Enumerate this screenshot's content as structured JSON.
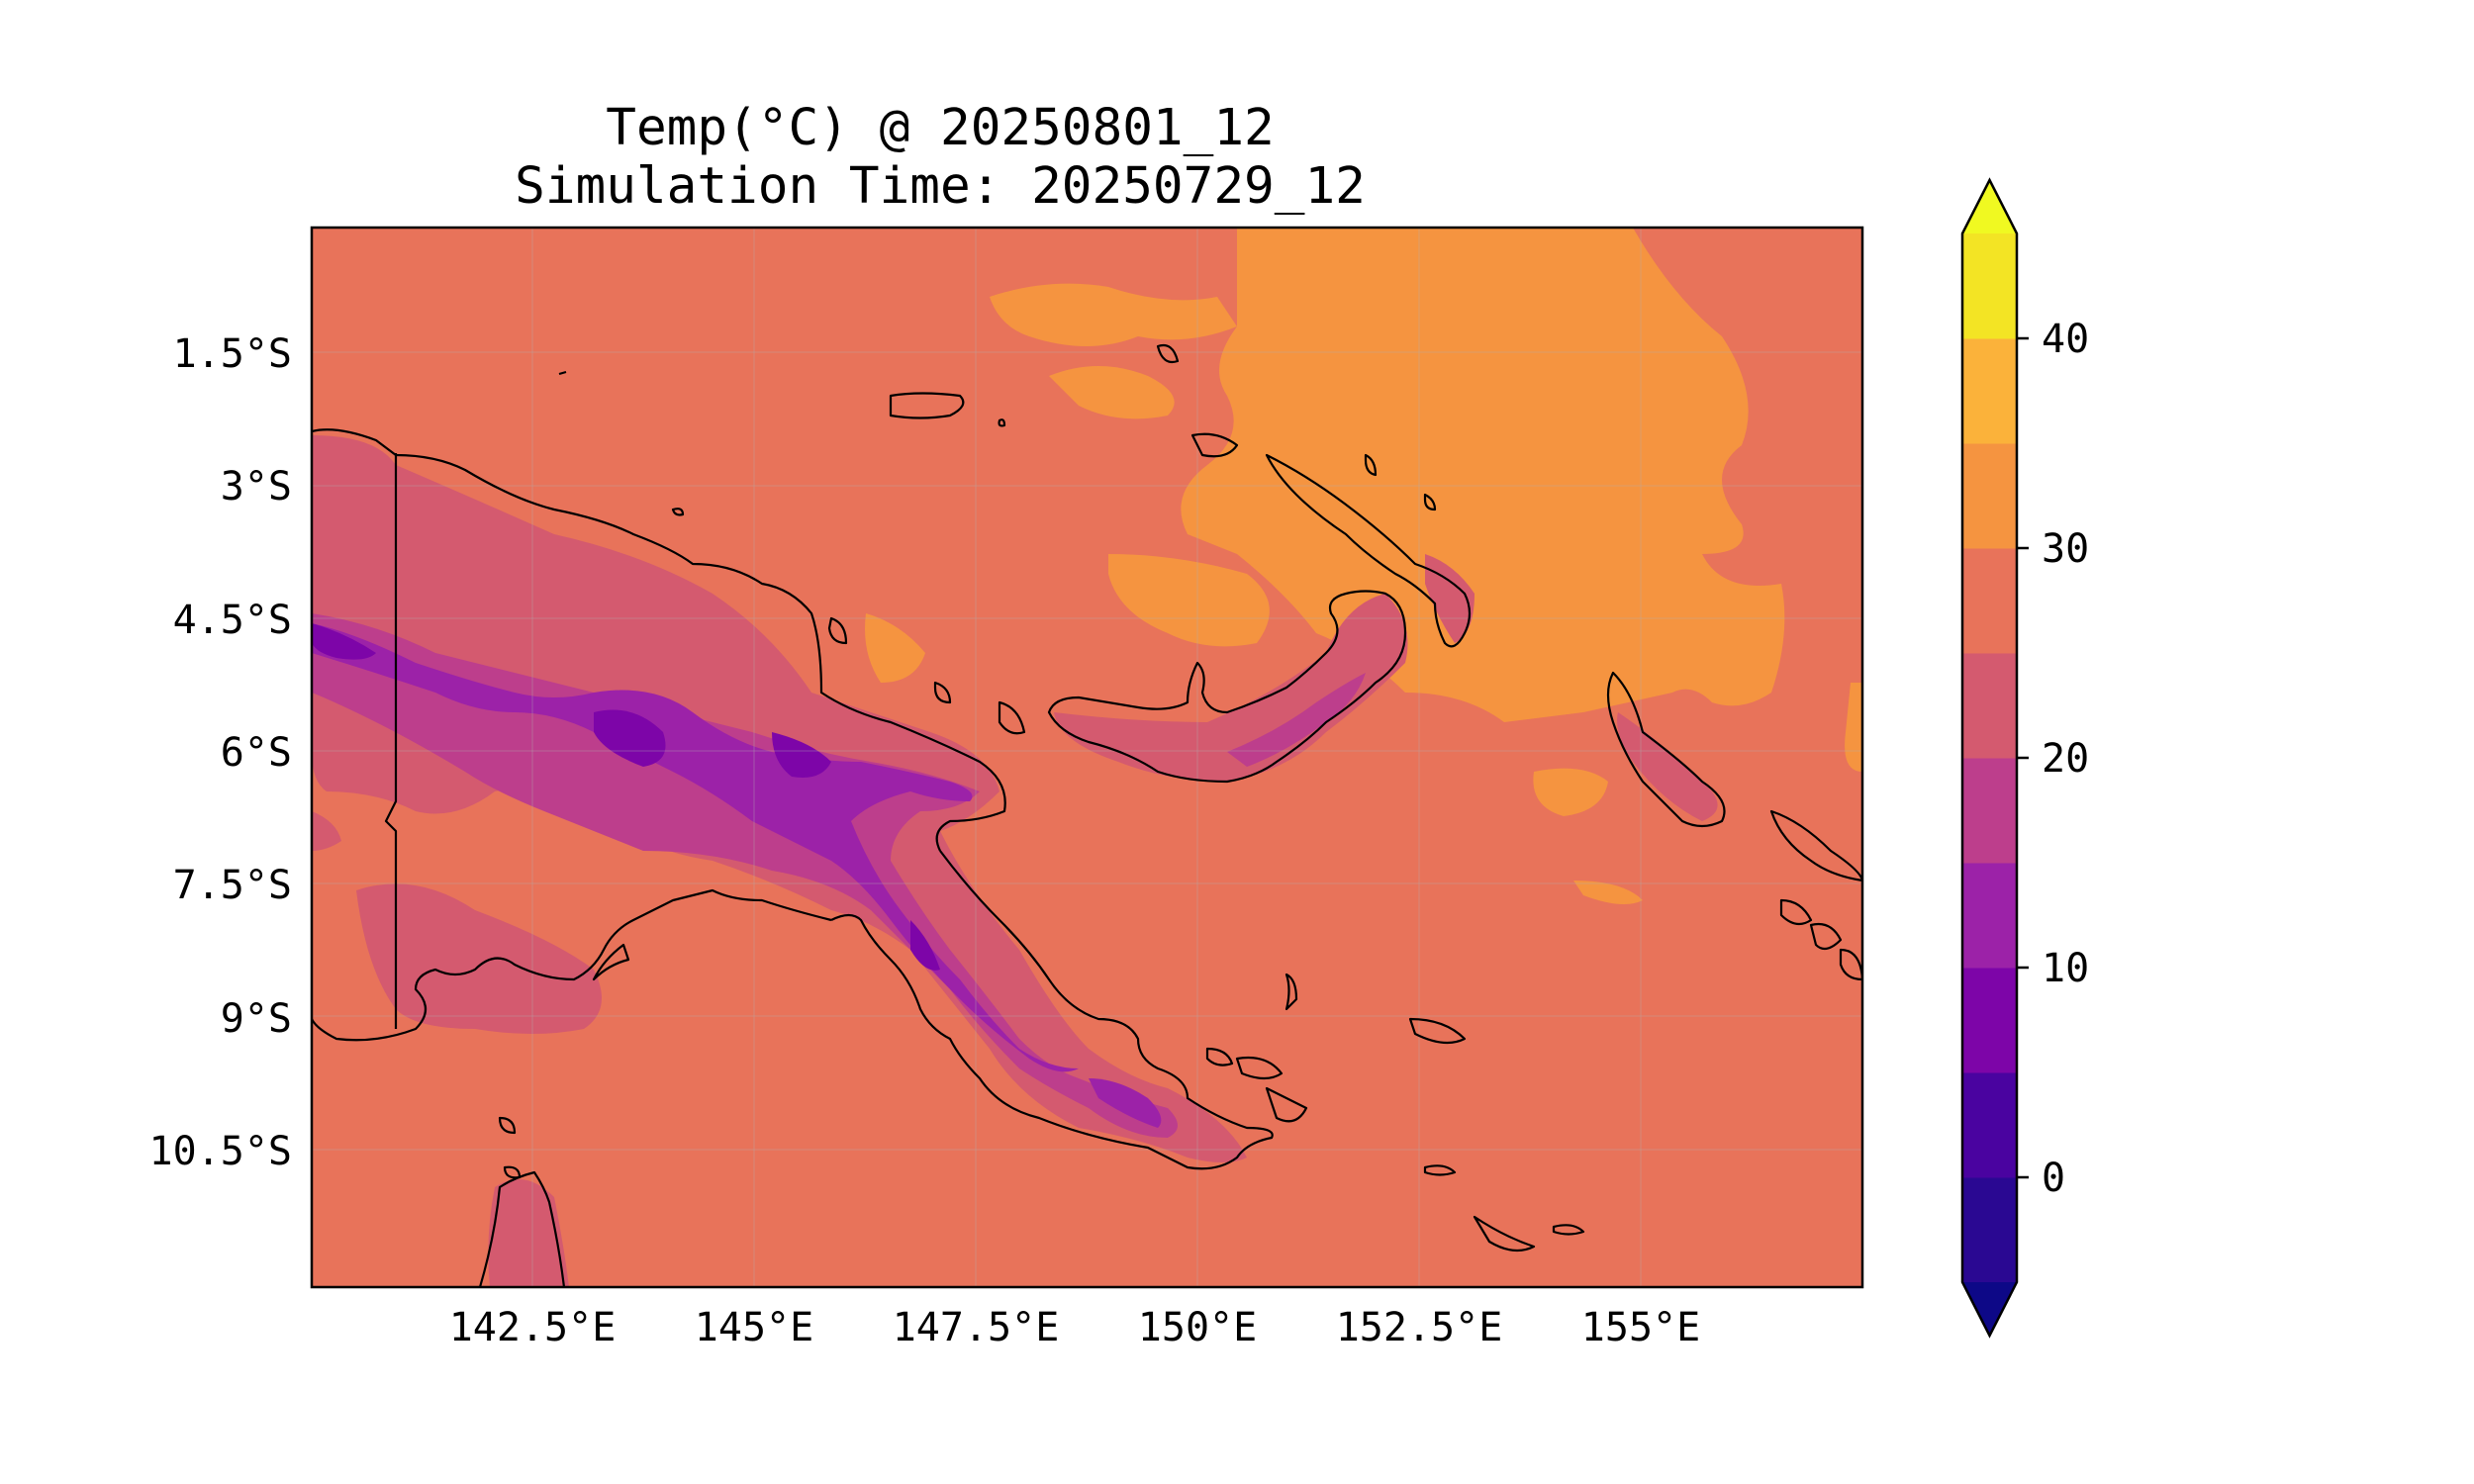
{
  "title": {
    "line1": "Temp(°C) @ 20250801_12",
    "line2": "Simulation Time: 20250729_12"
  },
  "map": {
    "lon_range": [
      140,
      157
    ],
    "lat_range": [
      -12.5,
      -0.5
    ],
    "x_ticks": [
      "142.5°E",
      "145°E",
      "147.5°E",
      "150°E",
      "152.5°E",
      "155°E"
    ],
    "y_ticks": [
      "1.5°S",
      "3°S",
      "4.5°S",
      "6°S",
      "7.5°S",
      "9°S",
      "10.5°S"
    ],
    "colors": {
      "ocean": "#e8735a",
      "warm_band": "#f59440",
      "highland_20": "#d45a6f",
      "highland_15": "#bd3e8c",
      "highland_10": "#9c22a8",
      "highland_5": "#7d05a8"
    }
  },
  "colorbar": {
    "tick_labels": [
      "0",
      "10",
      "20",
      "30",
      "40"
    ],
    "levels": [
      -5,
      0,
      5,
      10,
      15,
      20,
      25,
      30,
      35,
      40,
      45
    ],
    "colors": [
      "#2a0892",
      "#4a03a0",
      "#7d05a8",
      "#9c22a8",
      "#bd3e8c",
      "#d45a6f",
      "#e8735a",
      "#f59440",
      "#fbb23a",
      "#f3e424"
    ],
    "under_color": "#0d0887",
    "over_color": "#f0f921",
    "extend": "both"
  }
}
